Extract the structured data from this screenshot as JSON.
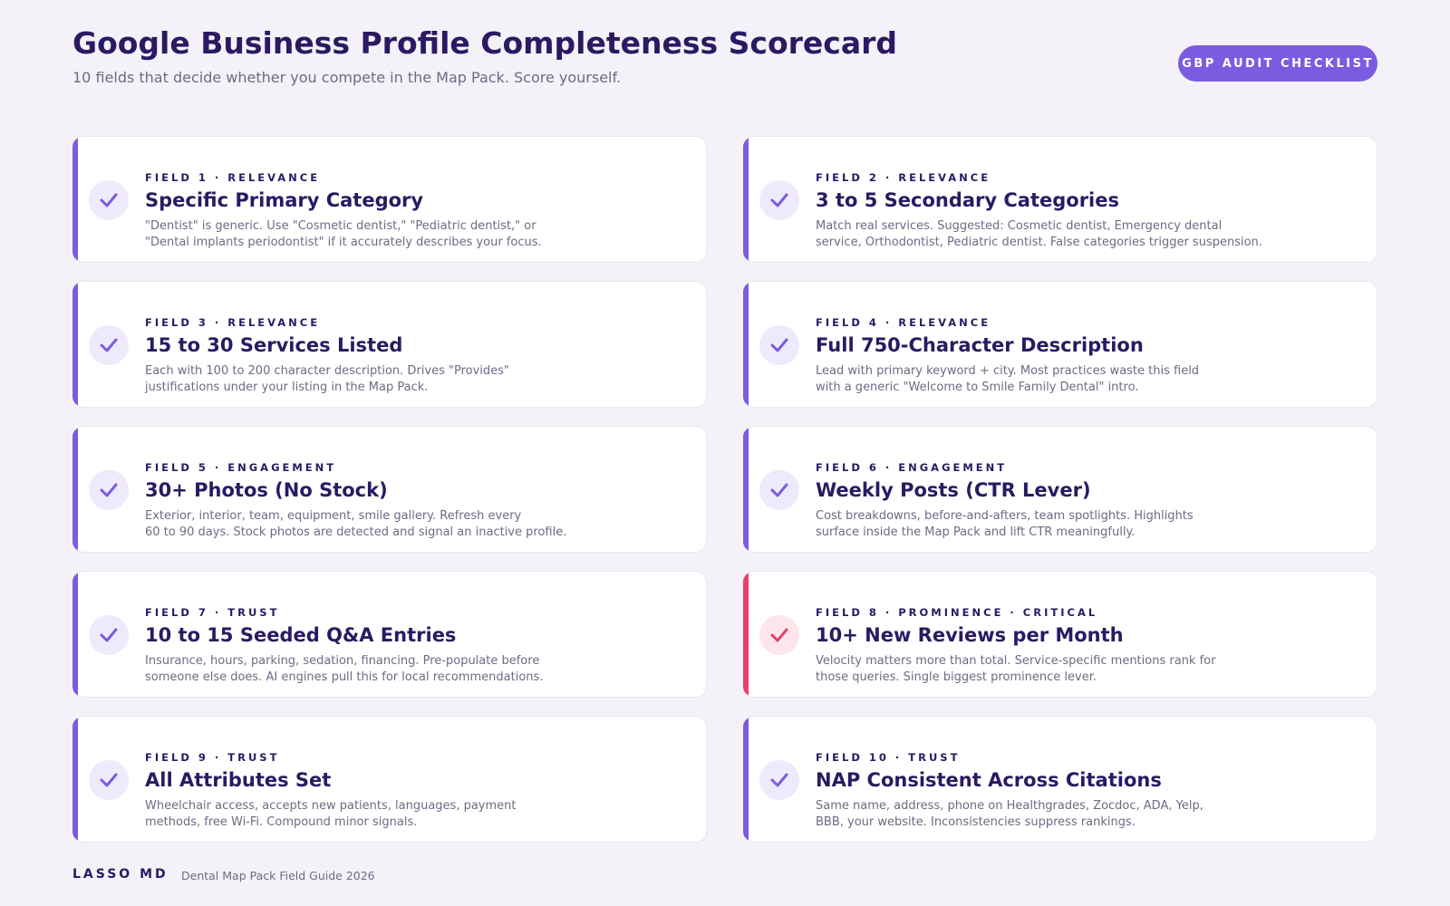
{
  "header": {
    "title": "Google Business Profile Completeness Scorecard",
    "subtitle": "10 fields that decide whether you compete in the Map Pack. Score yourself.",
    "badge": "GBP AUDIT CHECKLIST"
  },
  "cards": [
    {
      "label": "FIELD 1 · RELEVANCE",
      "title": "Specific Primary Category",
      "description": [
        "\"Dentist\" is generic. Use \"Cosmetic dentist,\" \"Pediatric dentist,\" or",
        "\"Dental implants periodontist\" if it accurately describes your focus."
      ],
      "color": "#7b5ce0"
    },
    {
      "label": "FIELD 2 · RELEVANCE",
      "title": "3 to 5 Secondary Categories",
      "description": [
        "Match real services. Suggested: Cosmetic dentist, Emergency dental",
        "service, Orthodontist, Pediatric dentist. False categories trigger suspension."
      ],
      "color": "#7b5ce0"
    },
    {
      "label": "FIELD 3 · RELEVANCE",
      "title": "15 to 30 Services Listed",
      "description": [
        "Each with 100 to 200 character description. Drives \"Provides\"",
        "justifications under your listing in the Map Pack."
      ],
      "color": "#7b5ce0"
    },
    {
      "label": "FIELD 4 · RELEVANCE",
      "title": "Full 750-Character Description",
      "description": [
        "Lead with primary keyword + city. Most practices waste this field",
        "with a generic \"Welcome to Smile Family Dental\" intro."
      ],
      "color": "#7b5ce0"
    },
    {
      "label": "FIELD 5 · ENGAGEMENT",
      "title": "30+ Photos (No Stock)",
      "description": [
        "Exterior, interior, team, equipment, smile gallery. Refresh every",
        "60 to 90 days. Stock photos are detected and signal an inactive profile."
      ],
      "color": "#7b5ce0"
    },
    {
      "label": "FIELD 6 · ENGAGEMENT",
      "title": "Weekly Posts (CTR Lever)",
      "description": [
        "Cost breakdowns, before-and-afters, team spotlights. Highlights",
        "surface inside the Map Pack and lift CTR meaningfully."
      ],
      "color": "#7b5ce0"
    },
    {
      "label": "FIELD 7 · TRUST",
      "title": "10 to 15 Seeded Q&A Entries",
      "description": [
        "Insurance, hours, parking, sedation, financing. Pre-populate before",
        "someone else does. AI engines pull this for local recommendations."
      ],
      "color": "#7b5ce0"
    },
    {
      "label": "FIELD 8 · PROMINENCE · CRITICAL",
      "title": "10+ New Reviews per Month",
      "description": [
        "Velocity matters more than total. Service-specific mentions rank for",
        "those queries. Single biggest prominence lever."
      ],
      "color": "#e8416b"
    },
    {
      "label": "FIELD 9 · TRUST",
      "title": "All Attributes Set",
      "description": [
        "Wheelchair access, accepts new patients, languages, payment",
        "methods, free Wi-Fi. Compound minor signals."
      ],
      "color": "#7b5ce0"
    },
    {
      "label": "FIELD 10 · TRUST",
      "title": "NAP Consistent Across Citations",
      "description": [
        "Same name, address, phone on Healthgrades, Zocdoc, ADA, Yelp,",
        "BBB, your website. Inconsistencies suppress rankings."
      ],
      "color": "#7b5ce0"
    }
  ],
  "footer": {
    "brand": "LASSO MD",
    "note": "Dental Map Pack Field Guide 2026"
  }
}
